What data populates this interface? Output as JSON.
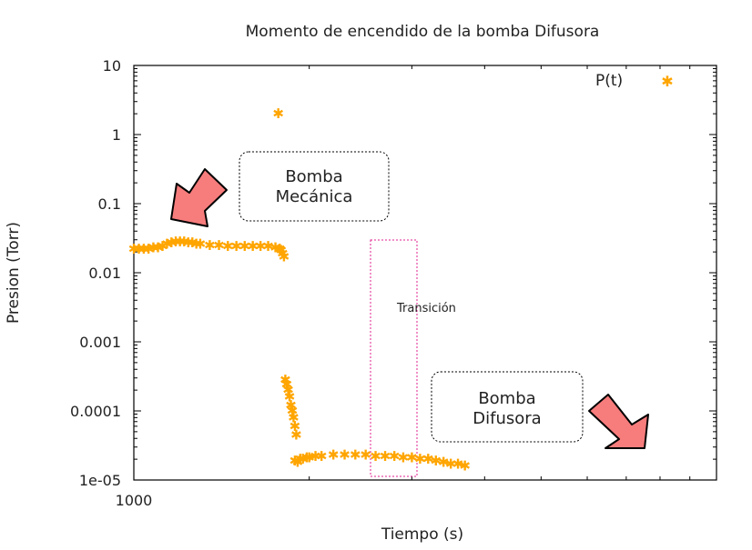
{
  "chart_data": {
    "type": "scatter",
    "title": "Momento de encendido de la bomba Difusora",
    "xlabel": "Tiempo (s)",
    "ylabel": "Presion (Torr)",
    "x_scale": "log",
    "y_scale": "log",
    "xlim": [
      1000,
      10000
    ],
    "ylim": [
      1e-05,
      10
    ],
    "x_ticks": [
      {
        "value": 1000,
        "label": "1000"
      }
    ],
    "y_ticks": [
      {
        "value": 10,
        "label": "10"
      },
      {
        "value": 1,
        "label": "1"
      },
      {
        "value": 0.1,
        "label": "0.1"
      },
      {
        "value": 0.01,
        "label": "0.01"
      },
      {
        "value": 0.001,
        "label": "0.001"
      },
      {
        "value": 0.0001,
        "label": "0.0001"
      },
      {
        "value": 1e-05,
        "label": "1e-05"
      }
    ],
    "grid": false,
    "legend": {
      "position": "top-right",
      "entries": [
        "P(t)"
      ]
    },
    "marker_color": "#ffa500",
    "series": [
      {
        "name": "P(t)",
        "points": [
          [
            1000,
            0.022
          ],
          [
            1020,
            0.022
          ],
          [
            1040,
            0.022
          ],
          [
            1060,
            0.022
          ],
          [
            1080,
            0.023
          ],
          [
            1100,
            0.023
          ],
          [
            1120,
            0.024
          ],
          [
            1140,
            0.026
          ],
          [
            1160,
            0.027
          ],
          [
            1180,
            0.028
          ],
          [
            1200,
            0.028
          ],
          [
            1220,
            0.028
          ],
          [
            1240,
            0.027
          ],
          [
            1260,
            0.027
          ],
          [
            1280,
            0.026
          ],
          [
            1300,
            0.026
          ],
          [
            1350,
            0.025
          ],
          [
            1400,
            0.025
          ],
          [
            1450,
            0.024
          ],
          [
            1500,
            0.024
          ],
          [
            1550,
            0.024
          ],
          [
            1600,
            0.024
          ],
          [
            1650,
            0.024
          ],
          [
            1700,
            0.024
          ],
          [
            1750,
            0.023
          ],
          [
            1780,
            0.022
          ],
          [
            1790,
            0.021
          ],
          [
            1800,
            0.019
          ],
          [
            1810,
            0.017
          ],
          [
            1770,
            2.0
          ],
          [
            1820,
            0.00028
          ],
          [
            1830,
            0.00024
          ],
          [
            1840,
            0.0002
          ],
          [
            1850,
            0.00016
          ],
          [
            1860,
            0.00012
          ],
          [
            1870,
            0.0001
          ],
          [
            1880,
            8e-05
          ],
          [
            1890,
            6e-05
          ],
          [
            1900,
            4.5e-05
          ],
          [
            1890,
            1.9e-05
          ],
          [
            1910,
            1.8e-05
          ],
          [
            1930,
            2e-05
          ],
          [
            1950,
            2e-05
          ],
          [
            1980,
            2.1e-05
          ],
          [
            2000,
            2.1e-05
          ],
          [
            2050,
            2.2e-05
          ],
          [
            2100,
            2.2e-05
          ],
          [
            2200,
            2.3e-05
          ],
          [
            2300,
            2.3e-05
          ],
          [
            2400,
            2.3e-05
          ],
          [
            2500,
            2.3e-05
          ],
          [
            2600,
            2.2e-05
          ],
          [
            2700,
            2.2e-05
          ],
          [
            2800,
            2.2e-05
          ],
          [
            2900,
            2.1e-05
          ],
          [
            3000,
            2.1e-05
          ],
          [
            3100,
            2e-05
          ],
          [
            3200,
            2e-05
          ],
          [
            3300,
            1.9e-05
          ],
          [
            3400,
            1.8e-05
          ],
          [
            3500,
            1.7e-05
          ],
          [
            3600,
            1.7e-05
          ],
          [
            3700,
            1.6e-05
          ]
        ]
      }
    ],
    "annotations": {
      "box1": "Bomba\nMecánica",
      "box2": "Bomba\nDifusora",
      "transition": "Transición"
    }
  }
}
